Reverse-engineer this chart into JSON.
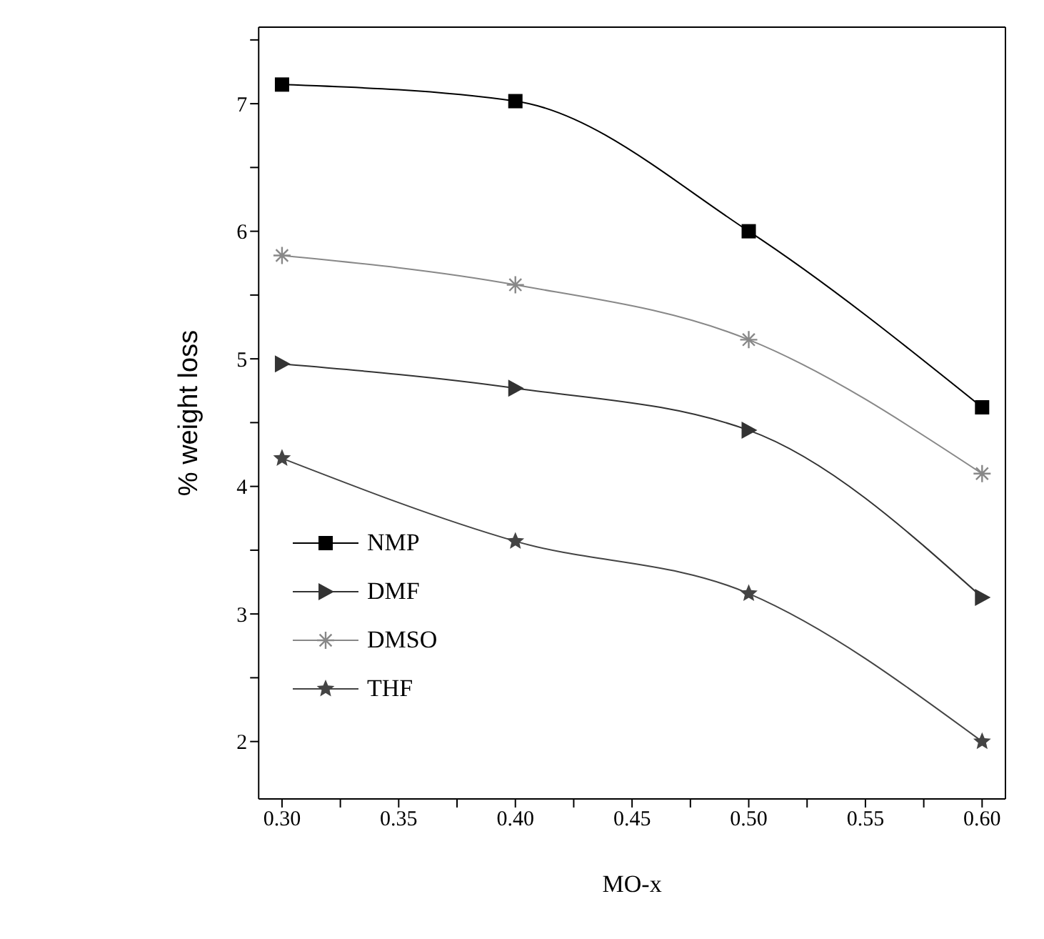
{
  "chart_data": {
    "type": "line",
    "xlabel": "MO-x",
    "ylabel": "% weight loss",
    "x": [
      0.3,
      0.4,
      0.5,
      0.6
    ],
    "series": [
      {
        "name": "NMP",
        "color": "#000000",
        "marker": "square",
        "values": [
          7.15,
          7.02,
          6.0,
          4.62
        ]
      },
      {
        "name": "DMF",
        "color": "#333333",
        "marker": "triangle",
        "values": [
          4.96,
          4.77,
          4.44,
          3.13
        ]
      },
      {
        "name": "DMSO",
        "color": "#888888",
        "marker": "cross",
        "values": [
          5.81,
          5.58,
          5.15,
          4.1
        ]
      },
      {
        "name": "THF",
        "color": "#444444",
        "marker": "star",
        "values": [
          4.22,
          3.57,
          3.16,
          2.0
        ]
      }
    ],
    "xlim": [
      0.29,
      0.61
    ],
    "xticks": [
      {
        "value": 0.3,
        "label": "0.30"
      },
      {
        "value": 0.325,
        "label": null
      },
      {
        "value": 0.35,
        "label": "0.35"
      },
      {
        "value": 0.375,
        "label": null
      },
      {
        "value": 0.4,
        "label": "0.40"
      },
      {
        "value": 0.425,
        "label": null
      },
      {
        "value": 0.45,
        "label": "0.45"
      },
      {
        "value": 0.475,
        "label": null
      },
      {
        "value": 0.5,
        "label": "0.50"
      },
      {
        "value": 0.525,
        "label": null
      },
      {
        "value": 0.55,
        "label": "0.55"
      },
      {
        "value": 0.575,
        "label": null
      },
      {
        "value": 0.6,
        "label": "0.60"
      }
    ],
    "ylim": [
      1.55,
      7.6
    ],
    "yticks": [
      2,
      {
        "value": 2.5,
        "label": null
      },
      3,
      {
        "value": 3.5,
        "label": null
      },
      4,
      {
        "value": 4.5,
        "label": null
      },
      5,
      {
        "value": 5.5,
        "label": null
      },
      6,
      {
        "value": 6.5,
        "label": null
      },
      7,
      {
        "value": 7.5,
        "label": null
      }
    ],
    "grid": false,
    "legend": "bottom left"
  }
}
